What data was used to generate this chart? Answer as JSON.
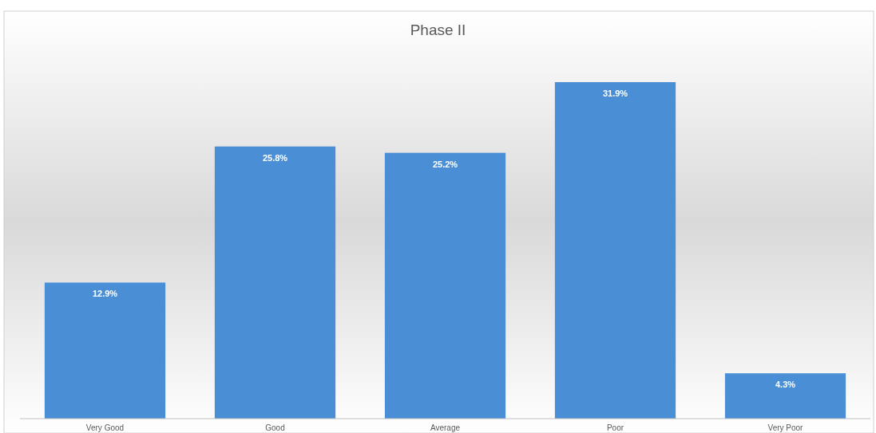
{
  "chart_data": {
    "type": "bar",
    "title": "Phase II",
    "categories": [
      "Very Good",
      "Good",
      "Average",
      "Poor",
      "Very Poor"
    ],
    "values": [
      12.9,
      25.8,
      25.2,
      31.9,
      4.3
    ],
    "color": "#4a8fd6",
    "value_labels": [
      "12.9%",
      "25.8%",
      "25.2%",
      "31.9%",
      "4.3%"
    ]
  }
}
